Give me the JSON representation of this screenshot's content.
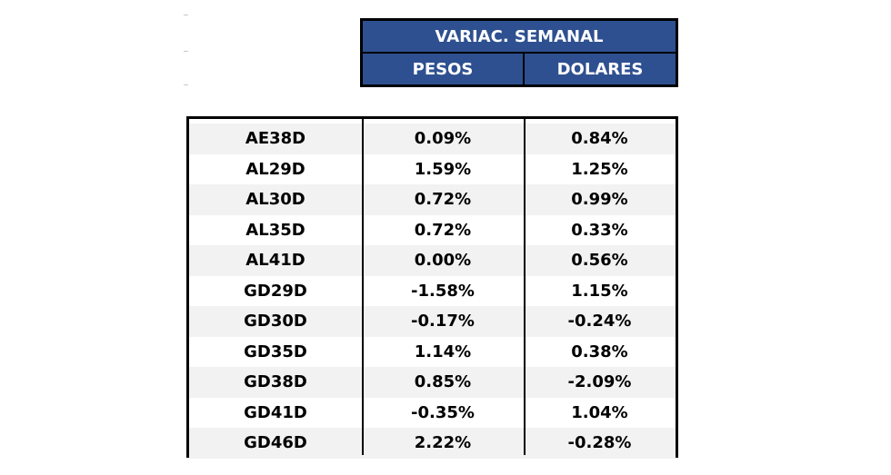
{
  "header": {
    "title": "VARIAC. SEMANAL",
    "columns": [
      "PESOS",
      "DOLARES"
    ]
  },
  "table": {
    "rows": [
      [
        "AE38D",
        "0.09%",
        "0.84%"
      ],
      [
        "AL29D",
        "1.59%",
        "1.25%"
      ],
      [
        "AL30D",
        "0.72%",
        "0.99%"
      ],
      [
        "AL35D",
        "0.72%",
        "0.33%"
      ],
      [
        "AL41D",
        "0.00%",
        "0.56%"
      ],
      [
        "GD29D",
        "-1.58%",
        "1.15%"
      ],
      [
        "GD30D",
        "-0.17%",
        "-0.24%"
      ],
      [
        "GD35D",
        "1.14%",
        "0.38%"
      ],
      [
        "GD38D",
        "0.85%",
        "-2.09%"
      ],
      [
        "GD41D",
        "-0.35%",
        "1.04%"
      ],
      [
        "GD46D",
        "2.22%",
        "-0.28%"
      ]
    ]
  }
}
